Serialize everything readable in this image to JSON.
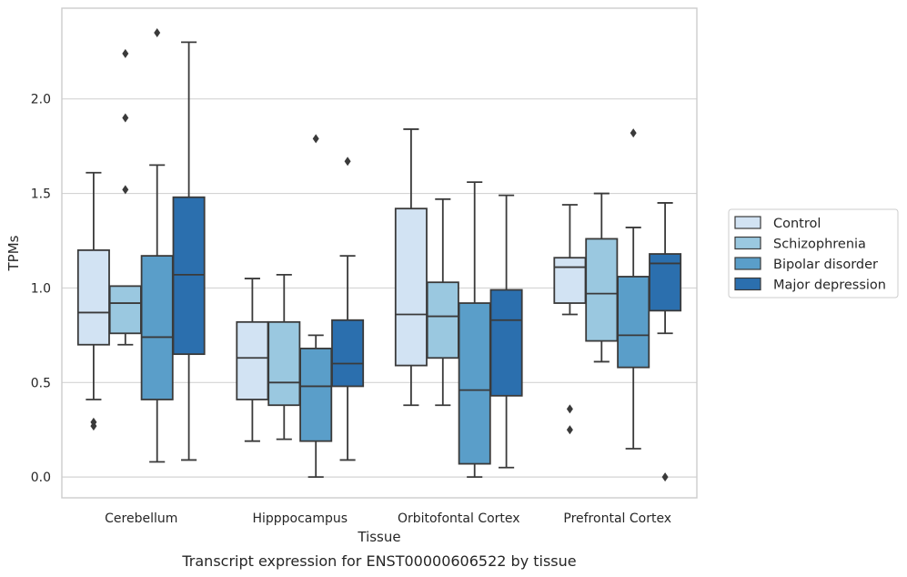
{
  "chart_data": {
    "type": "box",
    "caption": "Transcript expression for ENST00000606522 by tissue",
    "xlabel": "Tissue",
    "ylabel": "TPMs",
    "ylim": [
      -0.11,
      2.48
    ],
    "yticks": [
      "0.0",
      "0.5",
      "1.0",
      "1.5",
      "2.0"
    ],
    "grid": true,
    "legend_position": "right",
    "categories": [
      "Cerebellum",
      "Hipppocampus",
      "Orbitofontal Cortex",
      "Prefrontal Cortex"
    ],
    "series": [
      {
        "name": "Control",
        "color": "#d2e3f3",
        "boxes": [
          {
            "whisker_low": 0.41,
            "q1": 0.7,
            "median": 0.87,
            "q3": 1.2,
            "whisker_high": 1.61,
            "outliers": [
              0.29,
              0.27
            ]
          },
          {
            "whisker_low": 0.19,
            "q1": 0.41,
            "median": 0.63,
            "q3": 0.82,
            "whisker_high": 1.05,
            "outliers": []
          },
          {
            "whisker_low": 0.38,
            "q1": 0.59,
            "median": 0.86,
            "q3": 1.42,
            "whisker_high": 1.84,
            "outliers": []
          },
          {
            "whisker_low": 0.86,
            "q1": 0.92,
            "median": 1.11,
            "q3": 1.16,
            "whisker_high": 1.44,
            "outliers": [
              0.36,
              0.25
            ]
          }
        ]
      },
      {
        "name": "Schizophrenia",
        "color": "#9ac8e0",
        "boxes": [
          {
            "whisker_low": 0.7,
            "q1": 0.76,
            "median": 0.92,
            "q3": 1.01,
            "whisker_high": 1.01,
            "outliers": [
              1.52,
              1.9,
              2.24
            ]
          },
          {
            "whisker_low": 0.2,
            "q1": 0.38,
            "median": 0.5,
            "q3": 0.82,
            "whisker_high": 1.07,
            "outliers": []
          },
          {
            "whisker_low": 0.38,
            "q1": 0.63,
            "median": 0.85,
            "q3": 1.03,
            "whisker_high": 1.47,
            "outliers": []
          },
          {
            "whisker_low": 0.61,
            "q1": 0.72,
            "median": 0.97,
            "q3": 1.26,
            "whisker_high": 1.5,
            "outliers": []
          }
        ]
      },
      {
        "name": "Bipolar disorder",
        "color": "#5a9ec9",
        "boxes": [
          {
            "whisker_low": 0.08,
            "q1": 0.41,
            "median": 0.74,
            "q3": 1.17,
            "whisker_high": 1.65,
            "outliers": [
              2.35
            ]
          },
          {
            "whisker_low": 0.0,
            "q1": 0.19,
            "median": 0.48,
            "q3": 0.68,
            "whisker_high": 0.75,
            "outliers": [
              1.79
            ]
          },
          {
            "whisker_low": 0.0,
            "q1": 0.07,
            "median": 0.46,
            "q3": 0.92,
            "whisker_high": 1.56,
            "outliers": []
          },
          {
            "whisker_low": 0.15,
            "q1": 0.58,
            "median": 0.75,
            "q3": 1.06,
            "whisker_high": 1.32,
            "outliers": [
              1.82
            ]
          }
        ]
      },
      {
        "name": "Major depression",
        "color": "#2b6fae",
        "boxes": [
          {
            "whisker_low": 0.09,
            "q1": 0.65,
            "median": 1.07,
            "q3": 1.48,
            "whisker_high": 2.3,
            "outliers": []
          },
          {
            "whisker_low": 0.09,
            "q1": 0.48,
            "median": 0.6,
            "q3": 0.83,
            "whisker_high": 1.17,
            "outliers": [
              1.67
            ]
          },
          {
            "whisker_low": 0.05,
            "q1": 0.43,
            "median": 0.83,
            "q3": 0.99,
            "whisker_high": 1.49,
            "outliers": []
          },
          {
            "whisker_low": 0.76,
            "q1": 0.88,
            "median": 1.13,
            "q3": 1.18,
            "whisker_high": 1.45,
            "outliers": [
              0.0
            ]
          }
        ]
      }
    ]
  }
}
